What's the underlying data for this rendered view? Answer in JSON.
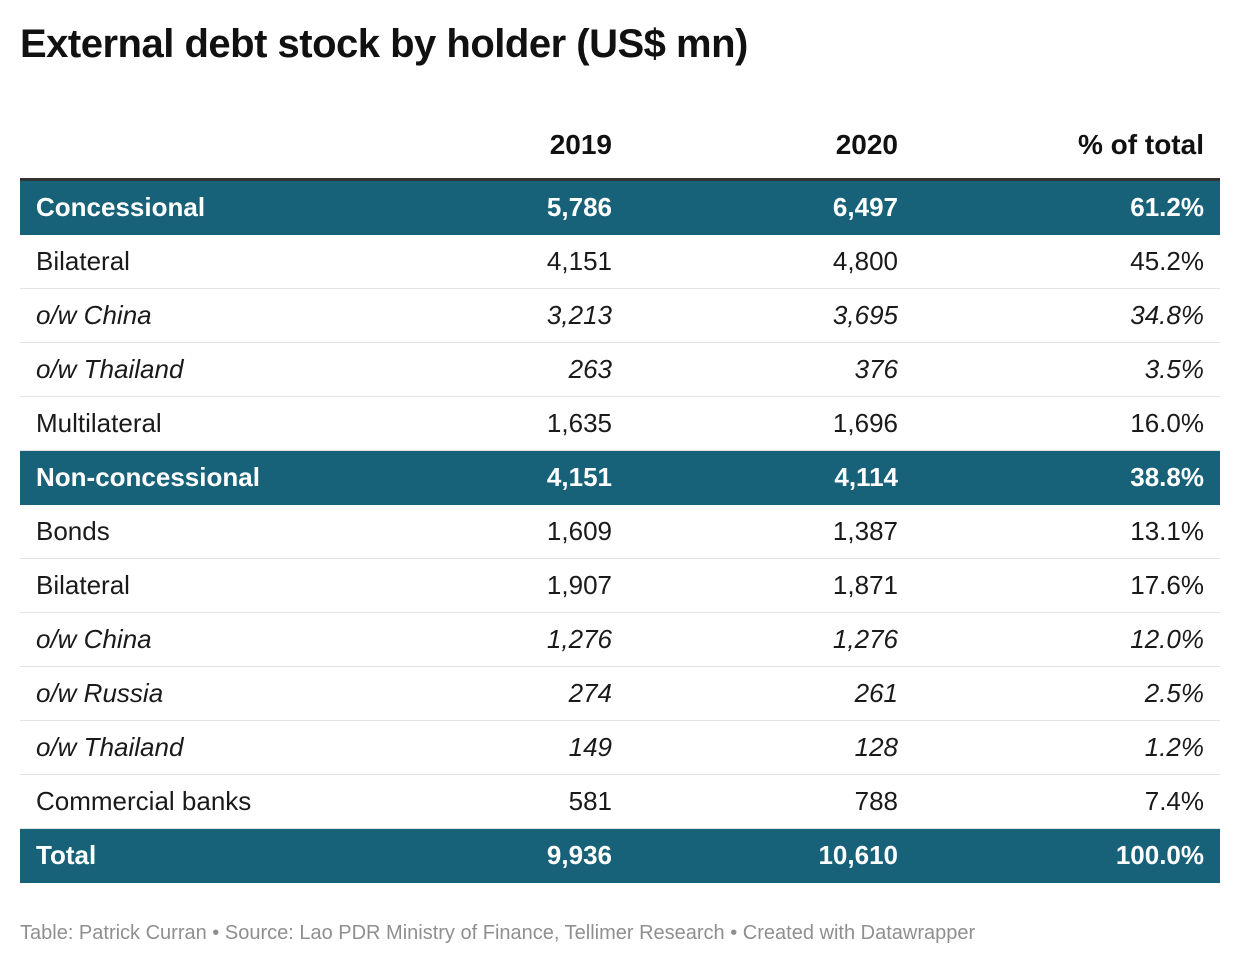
{
  "title": "External debt stock by holder (US$ mn)",
  "chart_data": {
    "type": "table",
    "title": "External debt stock by holder (US$ mn)",
    "columns": [
      "",
      "2019",
      "2020",
      "% of total"
    ],
    "rows": [
      {
        "label": "Concessional",
        "values": [
          "5,786",
          "6,497",
          "61.2%"
        ],
        "style": "highlight"
      },
      {
        "label": "Bilateral",
        "values": [
          "4,151",
          "4,800",
          "45.2%"
        ],
        "style": "normal"
      },
      {
        "label": "o/w China",
        "values": [
          "3,213",
          "3,695",
          "34.8%"
        ],
        "style": "italic"
      },
      {
        "label": "o/w Thailand",
        "values": [
          "263",
          "376",
          "3.5%"
        ],
        "style": "italic"
      },
      {
        "label": "Multilateral",
        "values": [
          "1,635",
          "1,696",
          "16.0%"
        ],
        "style": "normal"
      },
      {
        "label": "Non-concessional",
        "values": [
          "4,151",
          "4,114",
          "38.8%"
        ],
        "style": "highlight"
      },
      {
        "label": "Bonds",
        "values": [
          "1,609",
          "1,387",
          "13.1%"
        ],
        "style": "normal"
      },
      {
        "label": "Bilateral",
        "values": [
          "1,907",
          "1,871",
          "17.6%"
        ],
        "style": "normal"
      },
      {
        "label": "o/w China",
        "values": [
          "1,276",
          "1,276",
          "12.0%"
        ],
        "style": "italic"
      },
      {
        "label": "o/w Russia",
        "values": [
          "274",
          "261",
          "2.5%"
        ],
        "style": "italic"
      },
      {
        "label": "o/w Thailand",
        "values": [
          "149",
          "128",
          "1.2%"
        ],
        "style": "italic"
      },
      {
        "label": "Commercial banks",
        "values": [
          "581",
          "788",
          "7.4%"
        ],
        "style": "normal"
      },
      {
        "label": "Total",
        "values": [
          "9,936",
          "10,610",
          "100.0%"
        ],
        "style": "highlight"
      }
    ]
  },
  "colors": {
    "highlight_row": "#176279",
    "highlight_text": "#ffffff",
    "footer_text": "#8f8f8f"
  },
  "footer": "Table: Patrick Curran • Source: Lao PDR Ministry of Finance, Tellimer Research • Created with Datawrapper"
}
